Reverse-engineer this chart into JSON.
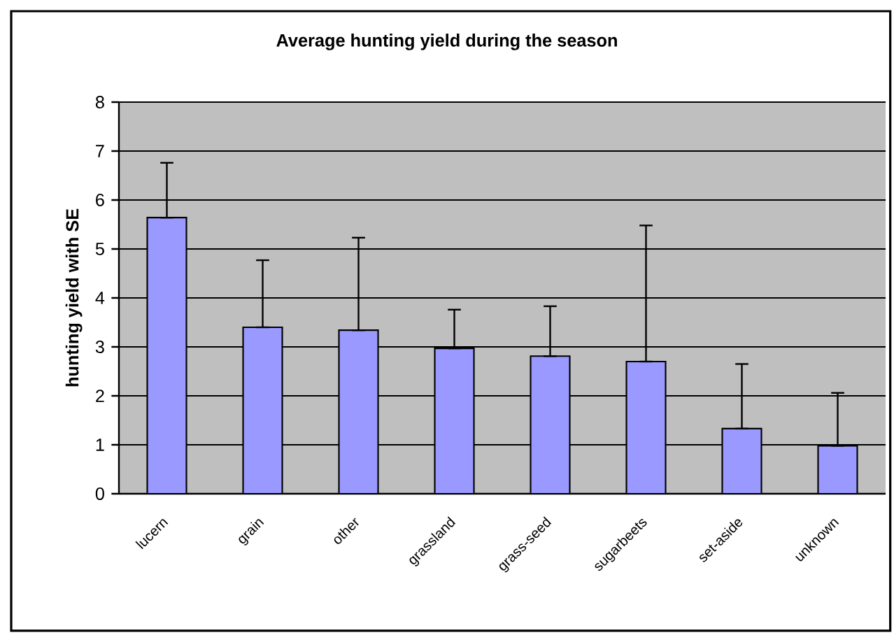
{
  "chart_data": {
    "type": "bar",
    "title": "Average hunting yield during the season",
    "ylabel": "hunting yield with SE",
    "categories": [
      "lucern",
      "grain",
      "other",
      "grassland",
      "grass-seed",
      "sugarbeets",
      "set-aside",
      "unknown"
    ],
    "values": [
      5.64,
      3.4,
      3.34,
      2.97,
      2.81,
      2.7,
      1.33,
      0.98
    ],
    "errors": [
      [
        5.64,
        6.76
      ],
      [
        3.4,
        4.77
      ],
      [
        3.34,
        5.23
      ],
      [
        2.97,
        3.76
      ],
      [
        2.81,
        3.83
      ],
      [
        2.7,
        5.48
      ],
      [
        1.33,
        2.65
      ],
      [
        0.98,
        2.06
      ]
    ],
    "color": "#9999ff",
    "ylim": [
      0,
      8
    ],
    "yticks": [
      0,
      1,
      2,
      3,
      4,
      5,
      6,
      7,
      8
    ],
    "grid": "y"
  }
}
